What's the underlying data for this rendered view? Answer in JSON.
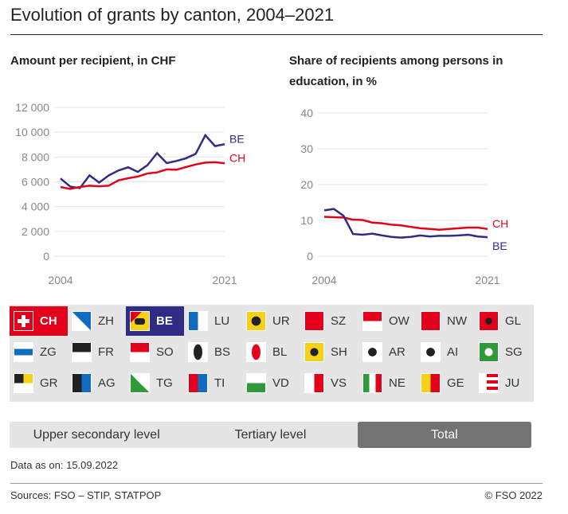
{
  "title": "Evolution of grants by canton, 2004–2021",
  "chart_data": [
    {
      "type": "line",
      "title": "Amount per recipient, in CHF",
      "x": [
        2004,
        2005,
        2006,
        2007,
        2008,
        2009,
        2010,
        2011,
        2012,
        2013,
        2014,
        2015,
        2016,
        2017,
        2018,
        2019,
        2020,
        2021
      ],
      "xticks": [
        "2004",
        "2021"
      ],
      "yticks": [
        "0",
        "2 000",
        "4 000",
        "6 000",
        "8 000",
        "10 000",
        "12 000"
      ],
      "ylim": [
        0,
        12000
      ],
      "grid": true,
      "series": [
        {
          "name": "BE",
          "color": "#302c85",
          "values": [
            6270,
            5620,
            5490,
            6520,
            5940,
            6520,
            6910,
            7170,
            6800,
            7340,
            8310,
            7510,
            7680,
            7900,
            8260,
            9760,
            8880,
            9030
          ]
        },
        {
          "name": "CH",
          "color": "#e2001a",
          "values": [
            5580,
            5430,
            5580,
            5690,
            5640,
            5690,
            6120,
            6290,
            6420,
            6670,
            6760,
            7000,
            6970,
            7190,
            7400,
            7550,
            7580,
            7490
          ]
        }
      ]
    },
    {
      "type": "line",
      "title": "Share of recipients among persons in education, in %",
      "x": [
        2004,
        2005,
        2006,
        2007,
        2008,
        2009,
        2010,
        2011,
        2012,
        2013,
        2014,
        2015,
        2016,
        2017,
        2018,
        2019,
        2020,
        2021
      ],
      "xticks": [
        "2004",
        "2021"
      ],
      "yticks": [
        "0",
        "10",
        "20",
        "30",
        "40"
      ],
      "ylim": [
        0,
        40
      ],
      "grid": true,
      "series": [
        {
          "name": "CH",
          "color": "#e2001a",
          "values": [
            11.0,
            10.9,
            10.8,
            10.2,
            10.1,
            9.4,
            9.2,
            8.8,
            8.6,
            8.2,
            7.8,
            7.6,
            7.4,
            7.6,
            7.8,
            8.0,
            8.0,
            7.6
          ]
        },
        {
          "name": "BE",
          "color": "#302c85",
          "values": [
            12.8,
            13.2,
            11.3,
            6.2,
            6.0,
            6.3,
            5.8,
            5.4,
            5.2,
            5.4,
            5.8,
            5.5,
            5.7,
            5.7,
            5.8,
            6.0,
            5.5,
            5.3
          ]
        }
      ]
    }
  ],
  "cantons": [
    "CH",
    "ZH",
    "BE",
    "LU",
    "UR",
    "SZ",
    "OW",
    "NW",
    "GL",
    "ZG",
    "FR",
    "SO",
    "BS",
    "BL",
    "SH",
    "AR",
    "AI",
    "SG",
    "GR",
    "AG",
    "TG",
    "TI",
    "VD",
    "VS",
    "NE",
    "GE",
    "JU"
  ],
  "selected": [
    "CH",
    "BE"
  ],
  "tabs": [
    {
      "label": "Upper secondary level"
    },
    {
      "label": "Tertiary level"
    },
    {
      "label": "Total",
      "active": true
    }
  ],
  "as_of": "Data as on: 15.09.2022",
  "sources": "Sources: FSO – STIP, STATPOP",
  "copyright": "© FSO 2022"
}
